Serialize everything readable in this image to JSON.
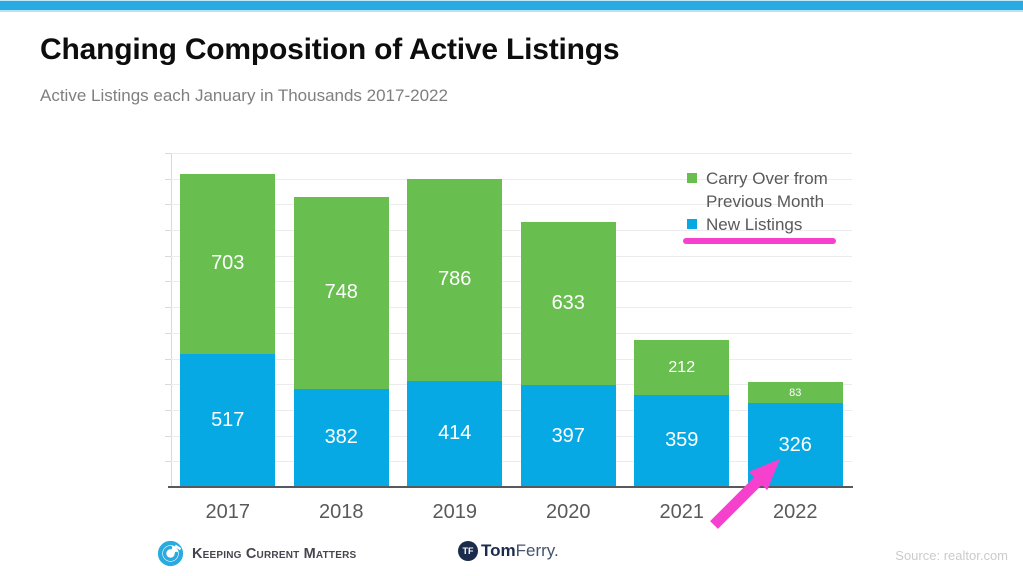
{
  "page": {
    "title": "Changing Composition of Active Listings",
    "subtitle": "Active Listings each January in Thousands 2017-2022",
    "accent_blue": "#29abe2",
    "accent_pink": "#f640ce"
  },
  "chart_data": {
    "type": "bar",
    "stacked": true,
    "title": "Changing Composition of Active Listings",
    "subtitle": "Active Listings each January in Thousands 2017-2022",
    "categories": [
      "2017",
      "2018",
      "2019",
      "2020",
      "2021",
      "2022"
    ],
    "series": [
      {
        "name": "New Listings",
        "color": "#07a9e4",
        "values": [
          517,
          382,
          414,
          397,
          359,
          326
        ]
      },
      {
        "name": "Carry Over from Previous Month",
        "color": "#69be50",
        "values": [
          703,
          748,
          786,
          633,
          212,
          83
        ]
      }
    ],
    "totals": [
      1220,
      1130,
      1200,
      1030,
      571,
      409
    ],
    "xlabel": "",
    "ylabel": "",
    "ylim": [
      0,
      1300
    ],
    "gridline_step": 100,
    "grid": true,
    "y_tick_labels_visible": false,
    "legend_position": "top-right",
    "data_labels": "inside-center-white",
    "annotations": [
      "pink underline below New Listings legend entry",
      "pink arrow pointing at 2022 bar"
    ]
  },
  "legend": {
    "items": [
      {
        "line1": "Carry Over from",
        "line2": "Previous Month"
      },
      {
        "line1": "New Listings"
      }
    ]
  },
  "footer": {
    "kcm_label": "Keeping Current Matters",
    "tomferry_circle": "TF",
    "tomferry_bold": "Tom",
    "tomferry_light": "Ferry.",
    "source": "Source: realtor.com"
  }
}
